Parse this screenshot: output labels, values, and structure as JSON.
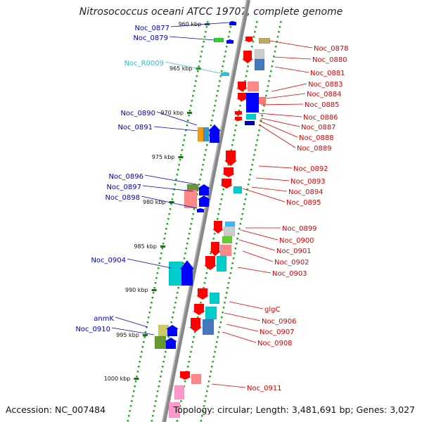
{
  "title": "Nitrosococcus oceani ATCC 19707, complete genome",
  "footer": {
    "accession": "Accession: NC_007484",
    "summary": "Topology: circular; Length: 3,481,691 bp; Genes: 3,027"
  },
  "colors": {
    "left_label": "#0000cc",
    "right_label": "#dd0000",
    "rna_label": "#33bbdd",
    "backbone": "#888888",
    "tick_dots": "#22aa22",
    "gene_red": "#ff0000",
    "gene_blue": "#0000ff"
  },
  "kbp_marks": [
    "960 kbp",
    "965 kbp",
    "970 kbp",
    "975 kbp",
    "980 kbp",
    "985 kbp",
    "990 kbp",
    "995 kbp",
    "1000 kbp"
  ],
  "left_labels": [
    "Noc_0877",
    "Noc_0879",
    "Noc_R0009",
    "Noc_0890",
    "Noc_0891",
    "Noc_0896",
    "Noc_0897",
    "Noc_0898",
    "Noc_0904",
    "anmK",
    "Noc_0910"
  ],
  "right_labels": [
    "Noc_0878",
    "Noc_0880",
    "Noc_0881",
    "Noc_0883",
    "Noc_0884",
    "Noc_0885",
    "Noc_0886",
    "Noc_0887",
    "Noc_0888",
    "Noc_0889",
    "Noc_0892",
    "Noc_0893",
    "Noc_0894",
    "Noc_0895",
    "Noc_0899",
    "Noc_0900",
    "Noc_0901",
    "Noc_0902",
    "Noc_0903",
    "glgC",
    "Noc_0906",
    "Noc_0907",
    "Noc_0908",
    "Noc_0911"
  ]
}
